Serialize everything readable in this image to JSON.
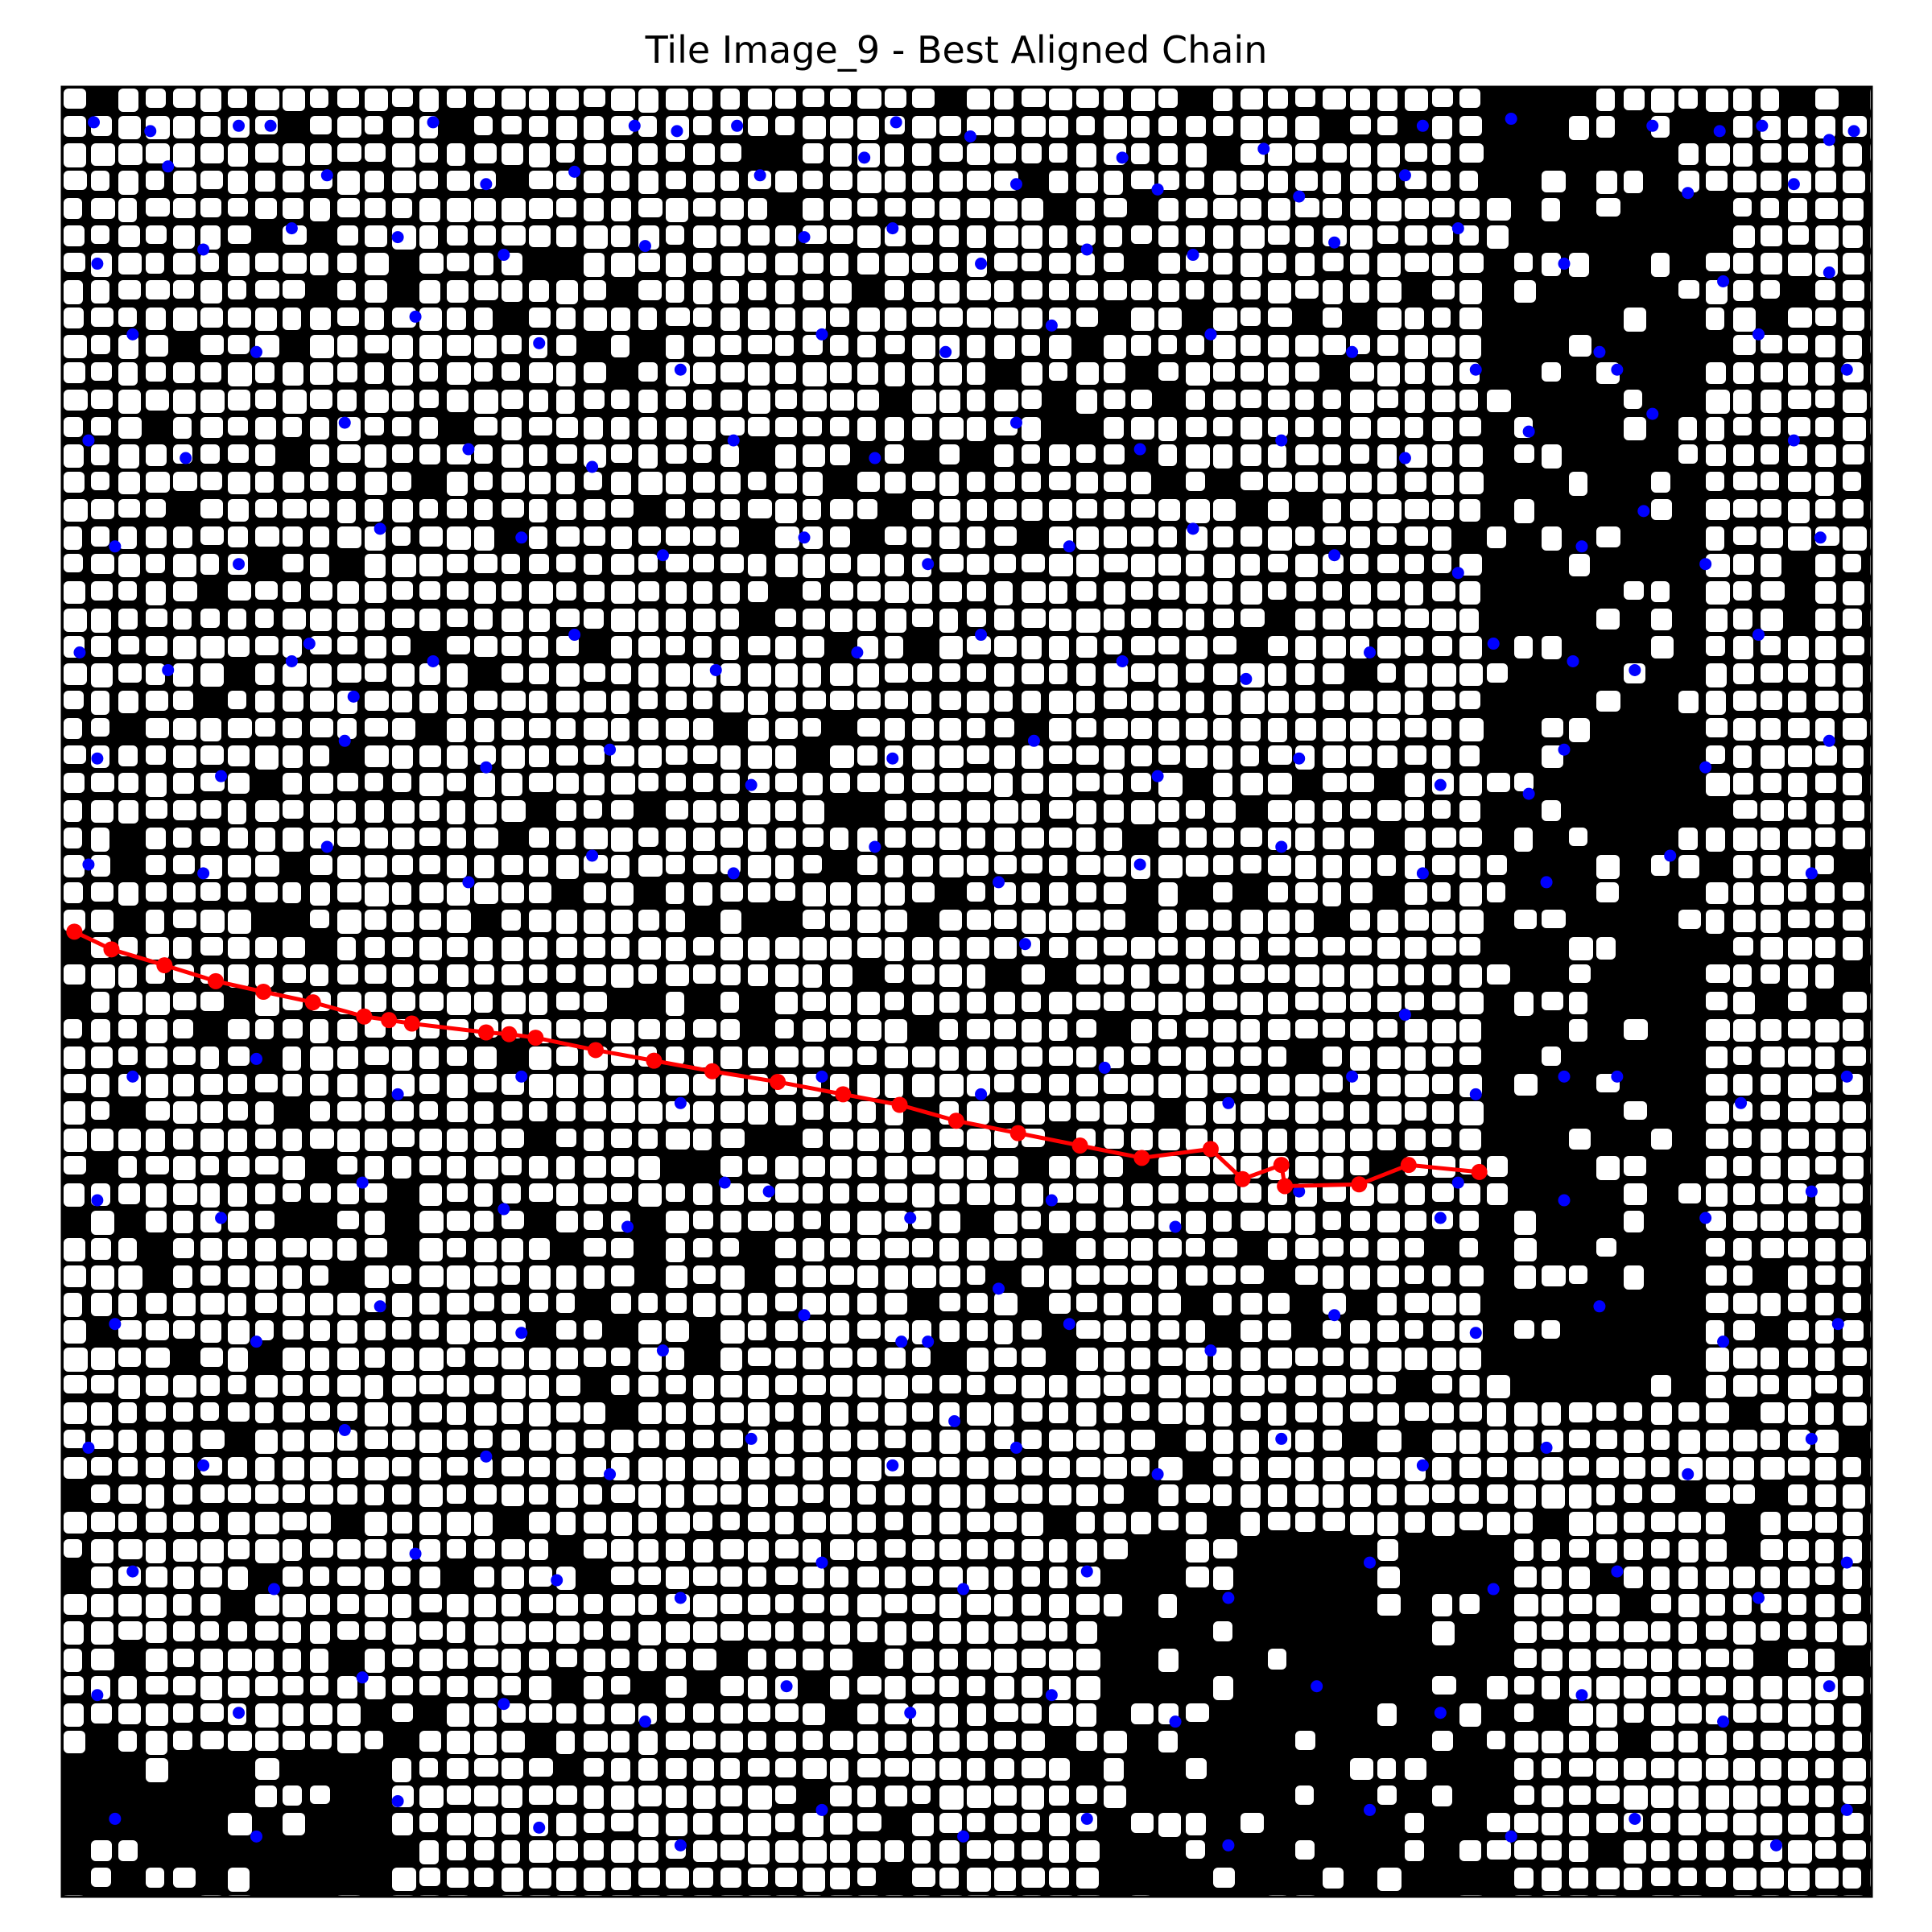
{
  "title": "Tile Image_9 - Best Aligned Chain",
  "colors": {
    "background": "#000000",
    "foreground": "#ffffff",
    "points": "#0000ff",
    "chain": "#ff0000",
    "frame": "#000000"
  },
  "chart_data": {
    "type": "scatter",
    "title": "Tile Image_9 - Best Aligned Chain",
    "xlabel": "",
    "ylabel": "",
    "xlim": [
      0,
      1024
    ],
    "ylim": [
      1024,
      0
    ],
    "axis_ticks": "hidden",
    "image_background": "binary mask (white regions on black)",
    "chain_series": {
      "marker": "circle",
      "line": true,
      "points": [
        [
          7,
          478
        ],
        [
          28,
          488
        ],
        [
          58,
          497
        ],
        [
          87,
          506
        ],
        [
          114,
          512
        ],
        [
          142,
          518
        ],
        [
          171,
          526
        ],
        [
          185,
          528
        ],
        [
          198,
          530
        ],
        [
          240,
          535
        ],
        [
          253,
          536
        ],
        [
          268,
          538
        ],
        [
          302,
          545
        ],
        [
          335,
          551
        ],
        [
          368,
          557
        ],
        [
          405,
          563
        ],
        [
          442,
          570
        ],
        [
          474,
          576
        ],
        [
          506,
          585
        ],
        [
          541,
          592
        ],
        [
          576,
          599
        ],
        [
          611,
          606
        ],
        [
          650,
          601
        ],
        [
          668,
          618
        ],
        [
          690,
          610
        ],
        [
          692,
          622
        ],
        [
          734,
          621
        ],
        [
          762,
          610
        ],
        [
          802,
          614
        ]
      ]
    },
    "blob_centroid_points": [
      [
        18,
        20
      ],
      [
        50,
        25
      ],
      [
        100,
        22
      ],
      [
        118,
        22
      ],
      [
        210,
        20
      ],
      [
        324,
        22
      ],
      [
        348,
        25
      ],
      [
        382,
        22
      ],
      [
        454,
        40
      ],
      [
        472,
        20
      ],
      [
        514,
        28
      ],
      [
        600,
        40
      ],
      [
        680,
        35
      ],
      [
        770,
        22
      ],
      [
        820,
        18
      ],
      [
        900,
        22
      ],
      [
        938,
        25
      ],
      [
        962,
        22
      ],
      [
        1000,
        30
      ],
      [
        1014,
        25
      ],
      [
        60,
        45
      ],
      [
        150,
        50
      ],
      [
        240,
        55
      ],
      [
        290,
        48
      ],
      [
        395,
        50
      ],
      [
        470,
        80
      ],
      [
        540,
        55
      ],
      [
        620,
        58
      ],
      [
        700,
        62
      ],
      [
        760,
        50
      ],
      [
        920,
        60
      ],
      [
        980,
        55
      ],
      [
        20,
        100
      ],
      [
        80,
        92
      ],
      [
        130,
        80
      ],
      [
        190,
        85
      ],
      [
        250,
        95
      ],
      [
        330,
        90
      ],
      [
        420,
        85
      ],
      [
        520,
        100
      ],
      [
        580,
        92
      ],
      [
        640,
        95
      ],
      [
        720,
        88
      ],
      [
        790,
        80
      ],
      [
        850,
        100
      ],
      [
        940,
        110
      ],
      [
        1000,
        105
      ],
      [
        40,
        140
      ],
      [
        110,
        150
      ],
      [
        200,
        130
      ],
      [
        270,
        145
      ],
      [
        350,
        160
      ],
      [
        430,
        140
      ],
      [
        500,
        150
      ],
      [
        560,
        135
      ],
      [
        650,
        140
      ],
      [
        730,
        150
      ],
      [
        800,
        160
      ],
      [
        870,
        150
      ],
      [
        960,
        140
      ],
      [
        1010,
        160
      ],
      [
        15,
        200
      ],
      [
        70,
        210
      ],
      [
        160,
        190
      ],
      [
        230,
        205
      ],
      [
        300,
        215
      ],
      [
        380,
        200
      ],
      [
        460,
        210
      ],
      [
        540,
        190
      ],
      [
        610,
        205
      ],
      [
        690,
        200
      ],
      [
        760,
        210
      ],
      [
        830,
        195
      ],
      [
        900,
        185
      ],
      [
        980,
        200
      ],
      [
        30,
        260
      ],
      [
        100,
        270
      ],
      [
        180,
        250
      ],
      [
        260,
        255
      ],
      [
        340,
        265
      ],
      [
        420,
        255
      ],
      [
        490,
        270
      ],
      [
        570,
        260
      ],
      [
        640,
        250
      ],
      [
        720,
        265
      ],
      [
        790,
        275
      ],
      [
        860,
        260
      ],
      [
        930,
        270
      ],
      [
        995,
        255
      ],
      [
        10,
        320
      ],
      [
        60,
        330
      ],
      [
        140,
        315
      ],
      [
        210,
        325
      ],
      [
        290,
        310
      ],
      [
        370,
        330
      ],
      [
        450,
        320
      ],
      [
        520,
        310
      ],
      [
        600,
        325
      ],
      [
        670,
        335
      ],
      [
        740,
        320
      ],
      [
        810,
        315
      ],
      [
        890,
        330
      ],
      [
        960,
        310
      ],
      [
        20,
        380
      ],
      [
        90,
        390
      ],
      [
        160,
        370
      ],
      [
        240,
        385
      ],
      [
        310,
        375
      ],
      [
        390,
        395
      ],
      [
        470,
        380
      ],
      [
        550,
        370
      ],
      [
        620,
        390
      ],
      [
        700,
        380
      ],
      [
        780,
        395
      ],
      [
        850,
        375
      ],
      [
        930,
        385
      ],
      [
        1000,
        370
      ],
      [
        15,
        440
      ],
      [
        80,
        445
      ],
      [
        150,
        430
      ],
      [
        230,
        450
      ],
      [
        300,
        435
      ],
      [
        380,
        445
      ],
      [
        460,
        430
      ],
      [
        530,
        450
      ],
      [
        610,
        440
      ],
      [
        690,
        430
      ],
      [
        770,
        445
      ],
      [
        840,
        450
      ],
      [
        910,
        435
      ],
      [
        990,
        445
      ],
      [
        40,
        560
      ],
      [
        110,
        550
      ],
      [
        190,
        570
      ],
      [
        260,
        560
      ],
      [
        350,
        575
      ],
      [
        430,
        560
      ],
      [
        520,
        570
      ],
      [
        590,
        555
      ],
      [
        660,
        575
      ],
      [
        730,
        560
      ],
      [
        800,
        570
      ],
      [
        880,
        560
      ],
      [
        950,
        575
      ],
      [
        1010,
        560
      ],
      [
        20,
        630
      ],
      [
        90,
        640
      ],
      [
        170,
        620
      ],
      [
        250,
        635
      ],
      [
        320,
        645
      ],
      [
        400,
        625
      ],
      [
        480,
        640
      ],
      [
        560,
        630
      ],
      [
        630,
        645
      ],
      [
        700,
        625
      ],
      [
        780,
        640
      ],
      [
        850,
        630
      ],
      [
        930,
        640
      ],
      [
        990,
        625
      ],
      [
        30,
        700
      ],
      [
        110,
        710
      ],
      [
        180,
        690
      ],
      [
        260,
        705
      ],
      [
        340,
        715
      ],
      [
        420,
        695
      ],
      [
        490,
        710
      ],
      [
        570,
        700
      ],
      [
        650,
        715
      ],
      [
        720,
        695
      ],
      [
        800,
        705
      ],
      [
        870,
        690
      ],
      [
        940,
        710
      ],
      [
        1005,
        700
      ],
      [
        15,
        770
      ],
      [
        80,
        780
      ],
      [
        160,
        760
      ],
      [
        240,
        775
      ],
      [
        310,
        785
      ],
      [
        390,
        765
      ],
      [
        470,
        780
      ],
      [
        540,
        770
      ],
      [
        620,
        785
      ],
      [
        690,
        765
      ],
      [
        770,
        780
      ],
      [
        840,
        770
      ],
      [
        920,
        785
      ],
      [
        990,
        765
      ],
      [
        40,
        840
      ],
      [
        120,
        850
      ],
      [
        200,
        830
      ],
      [
        280,
        845
      ],
      [
        350,
        855
      ],
      [
        430,
        835
      ],
      [
        510,
        850
      ],
      [
        580,
        840
      ],
      [
        660,
        855
      ],
      [
        740,
        835
      ],
      [
        810,
        850
      ],
      [
        880,
        840
      ],
      [
        960,
        855
      ],
      [
        1010,
        835
      ],
      [
        20,
        910
      ],
      [
        100,
        920
      ],
      [
        170,
        900
      ],
      [
        250,
        915
      ],
      [
        330,
        925
      ],
      [
        410,
        905
      ],
      [
        480,
        920
      ],
      [
        560,
        910
      ],
      [
        630,
        925
      ],
      [
        710,
        905
      ],
      [
        780,
        920
      ],
      [
        860,
        910
      ],
      [
        940,
        925
      ],
      [
        1000,
        905
      ],
      [
        30,
        980
      ],
      [
        110,
        990
      ],
      [
        190,
        970
      ],
      [
        270,
        985
      ],
      [
        350,
        995
      ],
      [
        430,
        975
      ],
      [
        510,
        990
      ],
      [
        580,
        980
      ],
      [
        660,
        995
      ],
      [
        740,
        975
      ],
      [
        820,
        990
      ],
      [
        890,
        980
      ],
      [
        970,
        995
      ],
      [
        1010,
        975
      ],
      [
        760,
        525
      ],
      [
        790,
        620
      ],
      [
        830,
        400
      ],
      [
        850,
        560
      ],
      [
        855,
        325
      ],
      [
        880,
        160
      ],
      [
        895,
        240
      ],
      [
        530,
        680
      ],
      [
        545,
        485
      ],
      [
        165,
        345
      ],
      [
        130,
        325
      ],
      [
        375,
        620
      ],
      [
        475,
        710
      ],
      [
        505,
        755
      ]
    ]
  }
}
